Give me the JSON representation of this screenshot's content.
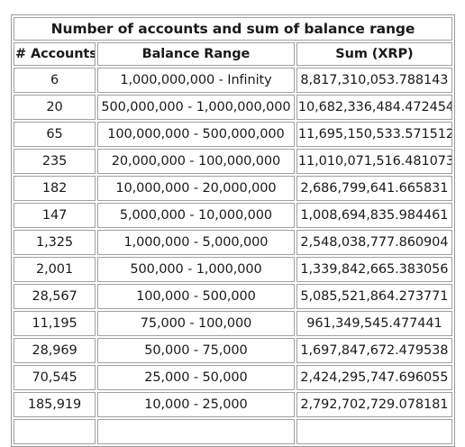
{
  "table": {
    "title": "Number of accounts and sum of balance range",
    "headers": [
      "# Accounts",
      "Balance Range",
      "Sum (XRP)"
    ],
    "rows": [
      [
        "6",
        "1,000,000,000 - Infinity",
        "8,817,310,053.788143"
      ],
      [
        "20",
        "500,000,000 - 1,000,000,000",
        "10,682,336,484.472454"
      ],
      [
        "65",
        "100,000,000 - 500,000,000",
        "11,695,150,533.571512"
      ],
      [
        "235",
        "20,000,000 - 100,000,000",
        "11,010,071,516.481073"
      ],
      [
        "182",
        "10,000,000 - 20,000,000",
        "2,686,799,641.665831"
      ],
      [
        "147",
        "5,000,000 - 10,000,000",
        "1,008,694,835.984461"
      ],
      [
        "1,325",
        "1,000,000 - 5,000,000",
        "2,548,038,777.860904"
      ],
      [
        "2,001",
        "500,000 - 1,000,000",
        "1,339,842,665.383056"
      ],
      [
        "28,567",
        "100,000 - 500,000",
        "5,085,521,864.273771"
      ],
      [
        "11,195",
        "75,000 - 100,000",
        "961,349,545.477441"
      ],
      [
        "28,969",
        "50,000 - 75,000",
        "1,697,847,672.479538"
      ],
      [
        "70,545",
        "25,000 - 50,000",
        "2,424,295,747.696055"
      ],
      [
        "185,919",
        "10,000 - 25,000",
        "2,792,702,729.078181"
      ],
      [
        "",
        "",
        ""
      ]
    ]
  }
}
